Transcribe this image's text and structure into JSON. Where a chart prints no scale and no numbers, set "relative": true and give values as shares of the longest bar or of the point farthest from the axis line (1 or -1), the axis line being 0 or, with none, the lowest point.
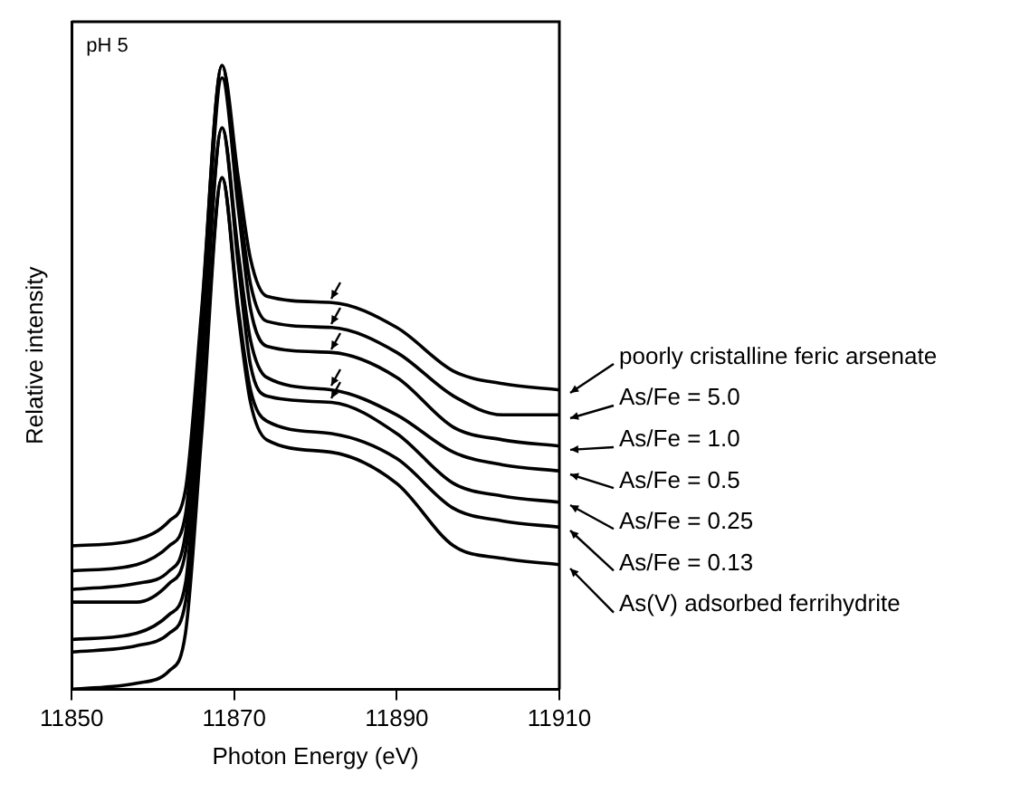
{
  "chart_data": {
    "type": "line",
    "relative": true,
    "xlabel": "Photon Energy (eV)",
    "ylabel": "Relative intensity",
    "annotations": [
      "pH 5"
    ],
    "x": [
      11850,
      11858,
      11862,
      11864,
      11866,
      11868.5,
      11870.5,
      11872,
      11874,
      11882,
      11890,
      11897,
      11903,
      11910
    ],
    "xlim": [
      11850,
      11910
    ],
    "xticks": [
      11850,
      11870,
      11890,
      11910
    ],
    "grid": false,
    "legend": "right",
    "marker": "none",
    "line_style": "solid",
    "series": [
      {
        "name": "poorly cristalline feric arsenate",
        "color": "#000000",
        "values": [
          0.23,
          0.24,
          0.27,
          0.32,
          0.61,
          1.0,
          0.82,
          0.69,
          0.63,
          0.62,
          0.58,
          0.51,
          0.49,
          0.48
        ]
      },
      {
        "name": "As/Fe = 5.0",
        "color": "#000000",
        "values": [
          0.19,
          0.2,
          0.23,
          0.28,
          0.6,
          1.0,
          0.79,
          0.65,
          0.59,
          0.58,
          0.54,
          0.47,
          0.44,
          0.44
        ]
      },
      {
        "name": "As/Fe = 1.0",
        "color": "#000000",
        "values": [
          0.16,
          0.17,
          0.19,
          0.25,
          0.57,
          0.98,
          0.77,
          0.61,
          0.55,
          0.54,
          0.5,
          0.42,
          0.4,
          0.39
        ]
      },
      {
        "name": "As/Fe = 0.5",
        "color": "#000000",
        "values": [
          0.14,
          0.14,
          0.17,
          0.22,
          0.52,
          0.9,
          0.7,
          0.56,
          0.5,
          0.48,
          0.44,
          0.38,
          0.36,
          0.35
        ]
      },
      {
        "name": "As/Fe = 0.25",
        "color": "#000000",
        "values": [
          0.08,
          0.09,
          0.12,
          0.17,
          0.5,
          0.9,
          0.68,
          0.52,
          0.47,
          0.46,
          0.41,
          0.33,
          0.31,
          0.3
        ]
      },
      {
        "name": "As/Fe = 0.13",
        "color": "#000000",
        "values": [
          0.06,
          0.07,
          0.09,
          0.14,
          0.44,
          0.82,
          0.61,
          0.48,
          0.43,
          0.41,
          0.37,
          0.29,
          0.27,
          0.26
        ]
      },
      {
        "name": "As(V) adsorbed ferrihydrite",
        "color": "#000000",
        "values": [
          0.0,
          0.01,
          0.03,
          0.09,
          0.41,
          0.82,
          0.6,
          0.46,
          0.4,
          0.38,
          0.33,
          0.23,
          0.21,
          0.2
        ]
      }
    ]
  }
}
